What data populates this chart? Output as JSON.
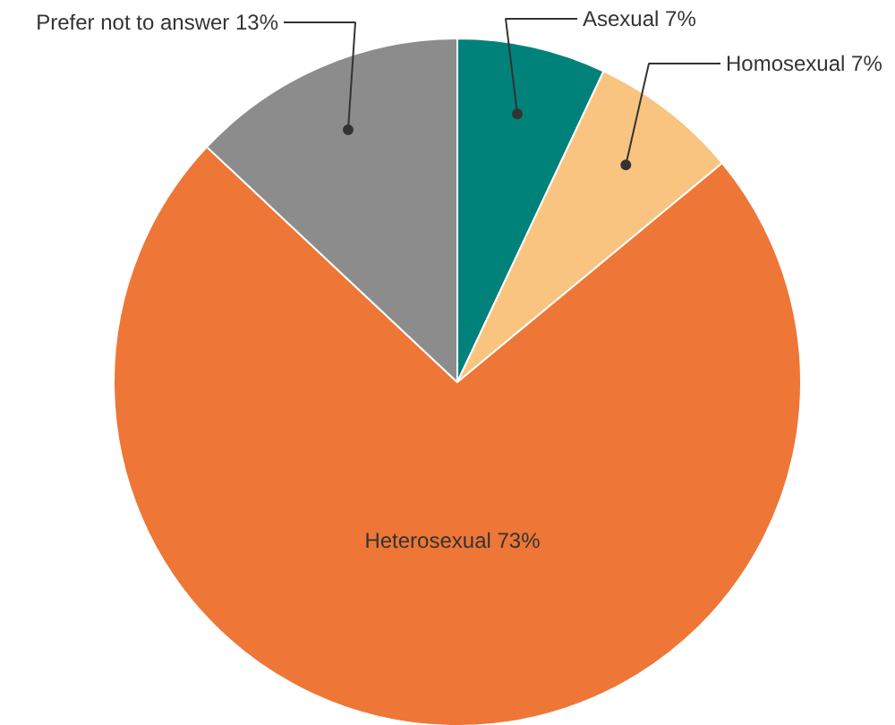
{
  "chart_data": {
    "type": "pie",
    "categories": [
      "Asexual",
      "Homosexual",
      "Heterosexual",
      "Prefer not to answer"
    ],
    "values": [
      7,
      7,
      73,
      13
    ],
    "value_labels": [
      "7%",
      "7%",
      "73%",
      "13%"
    ],
    "colors": [
      "#00827a",
      "#f9c47f",
      "#ee7636",
      "#8c8c8c"
    ]
  }
}
